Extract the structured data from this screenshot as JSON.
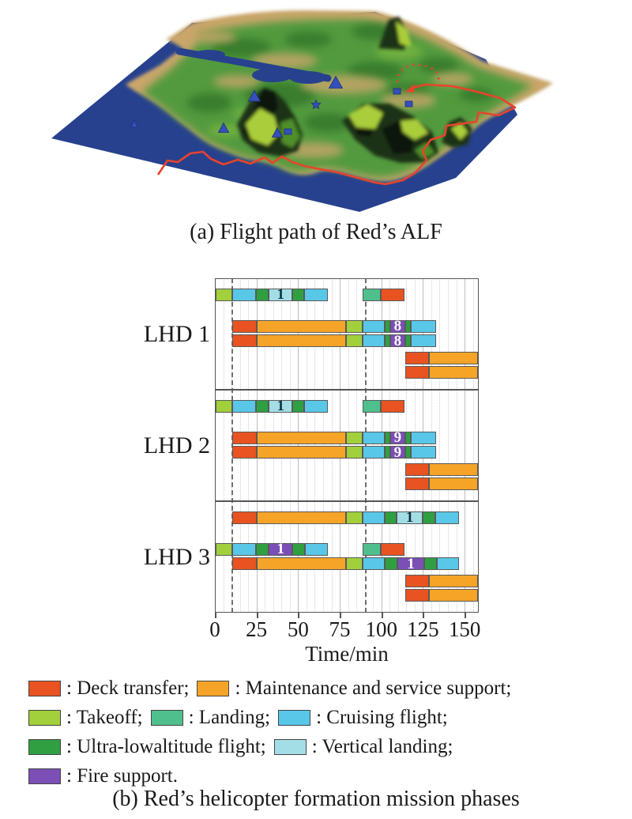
{
  "captions": {
    "a": "(a) Flight path of Red’s ALF",
    "b": "(b) Red’s helicopter formation mission phases"
  },
  "map": {
    "sea_color": "#27418e",
    "terrain_color": "#c9a66b",
    "vegetation_color": "#4d9a3d",
    "flight_path_color": "#e8432c",
    "marker_color": "#3550bb"
  },
  "chart_data": {
    "type": "gantt",
    "xlabel": "Time/min",
    "xticks": [
      0,
      25,
      50,
      75,
      100,
      125,
      150
    ],
    "xmax": 158.5,
    "minor_tick_step": 5,
    "major_tick_step": 25,
    "dashed_guides": [
      10,
      90
    ],
    "grid": "on",
    "phases": {
      "deck": {
        "label": "Deck transfer",
        "color": "#e85321"
      },
      "maint": {
        "label": "Maintenance and service support",
        "color": "#f5a428"
      },
      "takeoff": {
        "label": "Takeoff",
        "color": "#a2cf3c"
      },
      "landing": {
        "label": "Landing",
        "color": "#4fbf8d"
      },
      "cruise": {
        "label": "Cruising flight",
        "color": "#59c7e8"
      },
      "ultralow": {
        "label": "Ultra-lowaltitude flight",
        "color": "#2f9f42"
      },
      "vertland": {
        "label": "Vertical landing",
        "color": "#a3dee6"
      },
      "fire": {
        "label": "Fire support",
        "color": "#7b4fb6"
      }
    },
    "groups": [
      {
        "label": "LHD 1",
        "rows": [
          [
            {
              "s": 0,
              "e": 10,
              "c": "takeoff"
            },
            {
              "s": 10,
              "e": 24.5,
              "c": "cruise"
            },
            {
              "s": 24.5,
              "e": 32,
              "c": "ultralow"
            },
            {
              "s": 32,
              "e": 46.5,
              "c": "vertland",
              "t": "1"
            },
            {
              "s": 46.5,
              "e": 53.5,
              "c": "ultralow"
            },
            {
              "s": 53.5,
              "e": 68,
              "c": "cruise"
            },
            {
              "s": 89,
              "e": 100,
              "c": "landing"
            },
            {
              "s": 100,
              "e": 114,
              "c": "deck"
            }
          ],
          [
            {
              "s": 10,
              "e": 25,
              "c": "deck"
            },
            {
              "s": 25,
              "e": 79,
              "c": "maint"
            },
            {
              "s": 79,
              "e": 89,
              "c": "takeoff"
            },
            {
              "s": 89,
              "e": 102,
              "c": "cruise"
            },
            {
              "s": 102,
              "e": 105.5,
              "c": "ultralow"
            },
            {
              "s": 105.5,
              "e": 114.5,
              "c": "fire",
              "t": "8"
            },
            {
              "s": 114.5,
              "e": 118,
              "c": "ultralow"
            },
            {
              "s": 118,
              "e": 133,
              "c": "cruise"
            }
          ],
          [
            {
              "s": 10,
              "e": 25,
              "c": "deck"
            },
            {
              "s": 25,
              "e": 79,
              "c": "maint"
            },
            {
              "s": 79,
              "e": 89,
              "c": "takeoff"
            },
            {
              "s": 89,
              "e": 102,
              "c": "cruise"
            },
            {
              "s": 102,
              "e": 105.5,
              "c": "ultralow"
            },
            {
              "s": 105.5,
              "e": 114.5,
              "c": "fire",
              "t": "8"
            },
            {
              "s": 114.5,
              "e": 118,
              "c": "ultralow"
            },
            {
              "s": 118,
              "e": 133,
              "c": "cruise"
            }
          ],
          [
            {
              "s": 114.5,
              "e": 129,
              "c": "deck"
            },
            {
              "s": 129,
              "e": 158.5,
              "c": "maint"
            }
          ],
          [
            {
              "s": 114.5,
              "e": 129,
              "c": "deck"
            },
            {
              "s": 129,
              "e": 158.5,
              "c": "maint"
            }
          ]
        ]
      },
      {
        "label": "LHD 2",
        "rows": [
          [
            {
              "s": 0,
              "e": 10,
              "c": "takeoff"
            },
            {
              "s": 10,
              "e": 24.5,
              "c": "cruise"
            },
            {
              "s": 24.5,
              "e": 32,
              "c": "ultralow"
            },
            {
              "s": 32,
              "e": 46.5,
              "c": "vertland",
              "t": "1"
            },
            {
              "s": 46.5,
              "e": 53.5,
              "c": "ultralow"
            },
            {
              "s": 53.5,
              "e": 68,
              "c": "cruise"
            },
            {
              "s": 89,
              "e": 100,
              "c": "landing"
            },
            {
              "s": 100,
              "e": 114,
              "c": "deck"
            }
          ],
          [
            {
              "s": 10,
              "e": 25,
              "c": "deck"
            },
            {
              "s": 25,
              "e": 79,
              "c": "maint"
            },
            {
              "s": 79,
              "e": 89,
              "c": "takeoff"
            },
            {
              "s": 89,
              "e": 102,
              "c": "cruise"
            },
            {
              "s": 102,
              "e": 105.5,
              "c": "ultralow"
            },
            {
              "s": 105.5,
              "e": 114.5,
              "c": "fire",
              "t": "9"
            },
            {
              "s": 114.5,
              "e": 118,
              "c": "ultralow"
            },
            {
              "s": 118,
              "e": 133,
              "c": "cruise"
            }
          ],
          [
            {
              "s": 10,
              "e": 25,
              "c": "deck"
            },
            {
              "s": 25,
              "e": 79,
              "c": "maint"
            },
            {
              "s": 79,
              "e": 89,
              "c": "takeoff"
            },
            {
              "s": 89,
              "e": 102,
              "c": "cruise"
            },
            {
              "s": 102,
              "e": 105.5,
              "c": "ultralow"
            },
            {
              "s": 105.5,
              "e": 114.5,
              "c": "fire",
              "t": "9"
            },
            {
              "s": 114.5,
              "e": 118,
              "c": "ultralow"
            },
            {
              "s": 118,
              "e": 133,
              "c": "cruise"
            }
          ],
          [
            {
              "s": 114.5,
              "e": 129,
              "c": "deck"
            },
            {
              "s": 129,
              "e": 158.5,
              "c": "maint"
            }
          ],
          [
            {
              "s": 114.5,
              "e": 129,
              "c": "deck"
            },
            {
              "s": 129,
              "e": 158.5,
              "c": "maint"
            }
          ]
        ]
      },
      {
        "label": "LHD 3",
        "rows": [
          [
            {
              "s": 10,
              "e": 25,
              "c": "deck"
            },
            {
              "s": 25,
              "e": 79,
              "c": "maint"
            },
            {
              "s": 79,
              "e": 89,
              "c": "takeoff"
            },
            {
              "s": 89,
              "e": 102,
              "c": "cruise"
            },
            {
              "s": 102,
              "e": 109.5,
              "c": "ultralow"
            },
            {
              "s": 109.5,
              "e": 125,
              "c": "vertland",
              "t": "1"
            },
            {
              "s": 125,
              "e": 132.5,
              "c": "ultralow"
            },
            {
              "s": 132.5,
              "e": 147,
              "c": "cruise"
            }
          ],
          [
            {
              "s": 0,
              "e": 10,
              "c": "takeoff"
            },
            {
              "s": 10,
              "e": 24.5,
              "c": "cruise"
            },
            {
              "s": 24.5,
              "e": 32,
              "c": "ultralow"
            },
            {
              "s": 32,
              "e": 46.5,
              "c": "fire",
              "t": "1"
            },
            {
              "s": 46.5,
              "e": 54,
              "c": "ultralow"
            },
            {
              "s": 54,
              "e": 68,
              "c": "cruise"
            },
            {
              "s": 89,
              "e": 100,
              "c": "landing"
            },
            {
              "s": 100,
              "e": 114,
              "c": "deck"
            }
          ],
          [
            {
              "s": 10,
              "e": 25,
              "c": "deck"
            },
            {
              "s": 25,
              "e": 79,
              "c": "maint"
            },
            {
              "s": 79,
              "e": 89,
              "c": "takeoff"
            },
            {
              "s": 89,
              "e": 102,
              "c": "cruise"
            },
            {
              "s": 102,
              "e": 110,
              "c": "ultralow"
            },
            {
              "s": 110,
              "e": 126,
              "c": "fire",
              "t": "1"
            },
            {
              "s": 126,
              "e": 133.5,
              "c": "ultralow"
            },
            {
              "s": 133.5,
              "e": 147,
              "c": "cruise"
            }
          ],
          [
            {
              "s": 114.5,
              "e": 129,
              "c": "deck"
            },
            {
              "s": 129,
              "e": 158.5,
              "c": "maint"
            }
          ],
          [
            {
              "s": 114.5,
              "e": 129,
              "c": "deck"
            },
            {
              "s": 129,
              "e": 158.5,
              "c": "maint"
            }
          ]
        ]
      }
    ],
    "legend_rows": [
      [
        {
          "phase": "deck",
          "text": ": Deck transfer;"
        },
        {
          "phase": "maint",
          "text": ": Maintenance and service support;"
        }
      ],
      [
        {
          "phase": "takeoff",
          "text": ": Takeoff;"
        },
        {
          "phase": "landing",
          "text": ": Landing;"
        },
        {
          "phase": "cruise",
          "text": ": Cruising flight;"
        }
      ],
      [
        {
          "phase": "ultralow",
          "text": ": Ultra-lowaltitude flight;"
        },
        {
          "phase": "vertland",
          "text": ": Vertical landing;"
        }
      ],
      [
        {
          "phase": "fire",
          "text": ": Fire support."
        }
      ]
    ]
  }
}
